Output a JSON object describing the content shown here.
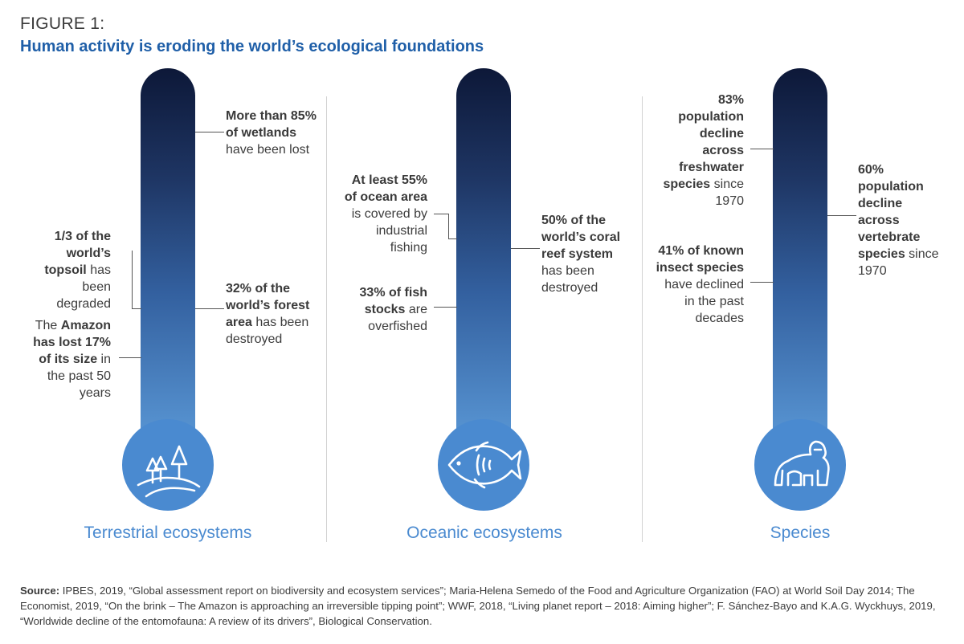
{
  "figure_label": "FIGURE 1:",
  "title": "Human activity is eroding the world’s ecological foundations",
  "columns": [
    {
      "label": "Terrestrial ecosystems",
      "icon": "trees-icon",
      "annotations": [
        {
          "bold": "More than 85% of wetlands",
          "normal": "have been lost"
        },
        {
          "bold": "1/3 of the world’s topsoil",
          "normal": "has been degraded"
        },
        {
          "bold": "32% of the world’s forest area",
          "normal": "has been destroyed"
        },
        {
          "pre": "The",
          "bold": "Amazon has lost 17% of its size",
          "normal": "in the past 50 years"
        }
      ]
    },
    {
      "label": "Oceanic ecosystems",
      "icon": "fish-icon",
      "annotations": [
        {
          "bold": "At least 55% of ocean area",
          "normal": "is covered by industrial fishing"
        },
        {
          "bold": "50% of the world’s coral reef system",
          "normal": "has been destroyed"
        },
        {
          "bold": "33% of fish stocks",
          "normal": "are overfished"
        }
      ]
    },
    {
      "label": "Species",
      "icon": "gorilla-icon",
      "annotations": [
        {
          "bold": "83% population decline across freshwater species",
          "normal": "since 1970"
        },
        {
          "bold": "60% population decline across vertebrate species",
          "normal": "since 1970"
        },
        {
          "bold": "41% of known insect species",
          "normal": "have declined in the past decades"
        }
      ]
    }
  ],
  "source_label": "Source:",
  "source_text": " IPBES, 2019, “Global assessment report on biodiversity and ecosystem services”; Maria-Helena Semedo of the Food and Agriculture Organization (FAO) at World Soil Day 2014; The Economist, 2019, “On the brink – The Amazon is approaching an irreversible tipping point”; WWF, 2018, “Living planet report – 2018: Aiming higher”; F. Sánchez-Bayo and K.A.G. Wyckhuys, 2019, “Worldwide decline of the entomofauna: A review of its drivers”, Biological Conservation.",
  "colors": {
    "title": "#1f5fa8",
    "accent": "#4a8ad0",
    "tube_top": "#0d1838",
    "tube_bottom": "#5692d0"
  }
}
